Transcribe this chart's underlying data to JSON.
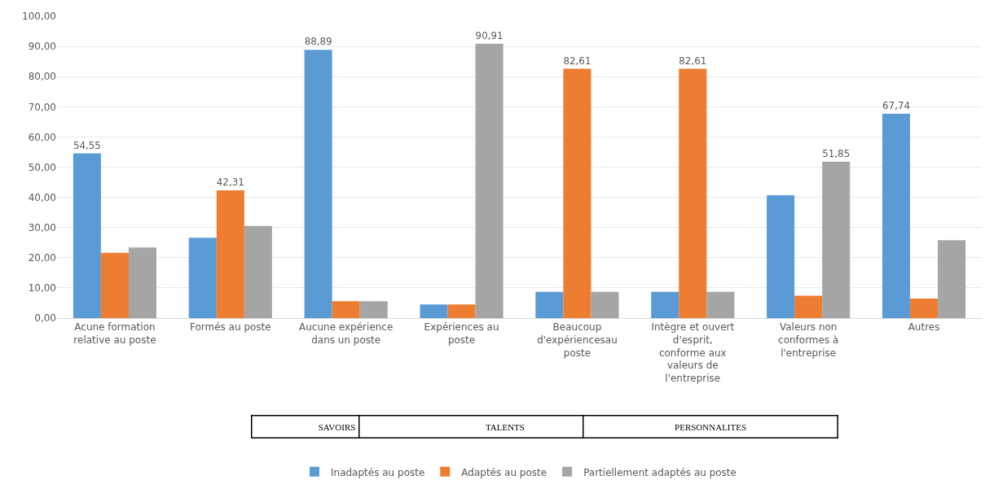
{
  "chart_data": {
    "type": "bar",
    "categories": [
      "Acune formation relative au poste",
      "Formés au poste",
      "Aucune expérience dans un poste",
      "Expériences au poste",
      "Beaucoup d'expériencesau poste",
      "Intègre et ouvert d'esprit, conforme aux valeurs de l'entreprise",
      "Valeurs non conformes à l'entreprise",
      "Autres"
    ],
    "series": [
      {
        "name": "Inadaptés au poste",
        "color": "#5b9bd5",
        "values": [
          54.55,
          26.6,
          88.89,
          4.5,
          8.7,
          8.7,
          40.7,
          67.74
        ],
        "value_labels": [
          "54,55",
          null,
          "88,89",
          null,
          null,
          null,
          null,
          "67,74"
        ]
      },
      {
        "name": "Adaptés au poste",
        "color": "#ed7d31",
        "values": [
          21.6,
          42.31,
          5.6,
          4.5,
          82.61,
          82.61,
          7.4,
          6.5
        ],
        "value_labels": [
          null,
          "42,31",
          null,
          null,
          "82,61",
          "82,61",
          null,
          null
        ]
      },
      {
        "name": "Partiellement adaptés au poste",
        "color": "#a5a5a5",
        "values": [
          23.4,
          30.5,
          5.6,
          90.91,
          8.7,
          8.7,
          51.85,
          25.8
        ],
        "value_labels": [
          null,
          null,
          null,
          "90,91",
          null,
          null,
          "51,85",
          null
        ]
      }
    ],
    "ylim": [
      0,
      100
    ],
    "yticks": [
      {
        "value": 0,
        "label": "0,00"
      },
      {
        "value": 10,
        "label": "10,00"
      },
      {
        "value": 20,
        "label": "20,00"
      },
      {
        "value": 30,
        "label": "30,00"
      },
      {
        "value": 40,
        "label": "40,00"
      },
      {
        "value": 50,
        "label": "50,00"
      },
      {
        "value": 60,
        "label": "60,00"
      },
      {
        "value": 70,
        "label": "70,00"
      },
      {
        "value": 80,
        "label": "80,00"
      },
      {
        "value": 90,
        "label": "90,00"
      },
      {
        "value": 100,
        "label": "100,00"
      }
    ],
    "grid": "y",
    "legend": "bottom",
    "annotations": [
      "SAVOIRS",
      "TALENTS",
      "PERSONNALITES"
    ]
  }
}
